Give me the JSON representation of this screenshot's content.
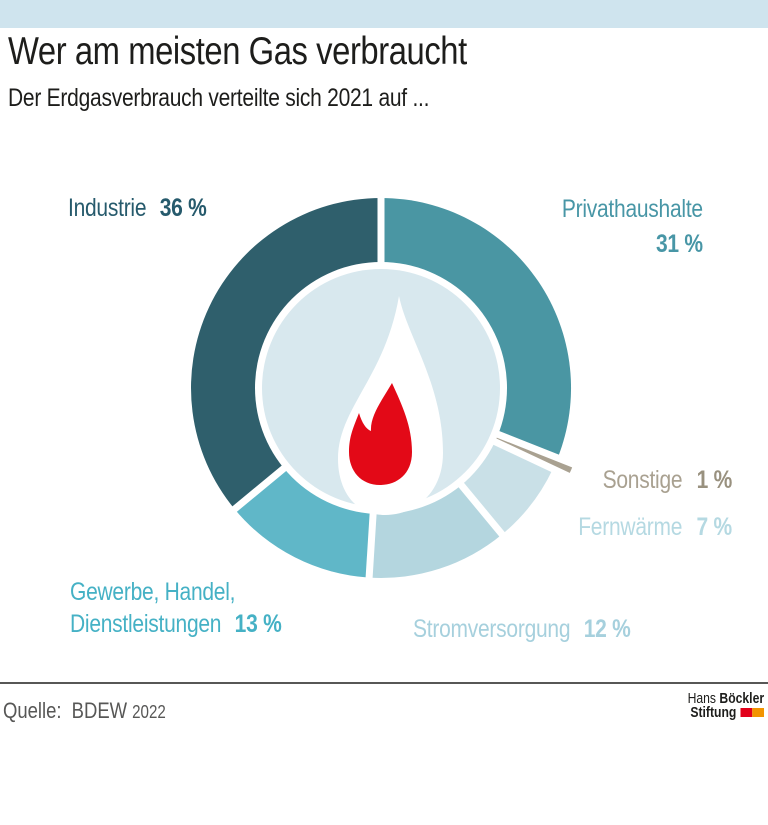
{
  "top_bar_color": "#cfe4ee",
  "header": {
    "title": "Wer am meisten Gas verbraucht",
    "subtitle": "Der Erdgasverbrauch verteilte sich 2021 auf ..."
  },
  "chart_data": {
    "type": "pie",
    "subtype": "donut",
    "title": "Wer am meisten Gas verbraucht",
    "subtitle": "Der Erdgasverbrauch verteilte sich 2021 auf ...",
    "unit": "%",
    "start_angle": "top",
    "direction": "clockwise",
    "segments": [
      {
        "label": "Privathaushalte",
        "value": 31,
        "color": "#4a96a3"
      },
      {
        "label": "Sonstige",
        "value": 1,
        "color": "#a9a191",
        "exploded": true
      },
      {
        "label": "Fernwärme",
        "value": 7,
        "color": "#c9e0e7"
      },
      {
        "label": "Stromversorgung",
        "value": 12,
        "color": "#b4d6df"
      },
      {
        "label": "Gewerbe, Handel, Dienstleistungen",
        "value": 13,
        "color": "#60b7c8"
      },
      {
        "label": "Industrie",
        "value": 36,
        "color": "#2f5f6c"
      }
    ],
    "center_icon": "flame",
    "inner_circle_color": "#d8e8ee",
    "flame_red_color": "#e30917"
  },
  "callouts": {
    "industrie": {
      "name": "Industrie",
      "value": "36 %",
      "color": "#265a6c"
    },
    "privathaushalte": {
      "name": "Privathaushalte",
      "value": "31 %",
      "color": "#4896a6"
    },
    "sonstige": {
      "name": "Sonstige",
      "value": "1 %",
      "color": "#a9a191",
      "value_color": "#99917f"
    },
    "fernwaerme": {
      "name": "Fernwärme",
      "value": "7 %",
      "color": "#b5d9e2"
    },
    "stromversorgung": {
      "name": "Stromversorgung",
      "value": "12 %",
      "color": "#a6d0dd"
    },
    "gewerbe": {
      "name_line1": "Gewerbe, Handel,",
      "name_line2": "Dienstleistungen",
      "value": "13 %",
      "color": "#45b1c5"
    }
  },
  "footer": {
    "source_label": "Quelle:",
    "source_name": "BDEW",
    "source_year": "2022",
    "logo": {
      "line1_regular": "Hans",
      "line1_bold": "Böckler",
      "line2_bold": "Stiftung",
      "square_colors": [
        "#e2001a",
        "#f29400"
      ]
    }
  }
}
